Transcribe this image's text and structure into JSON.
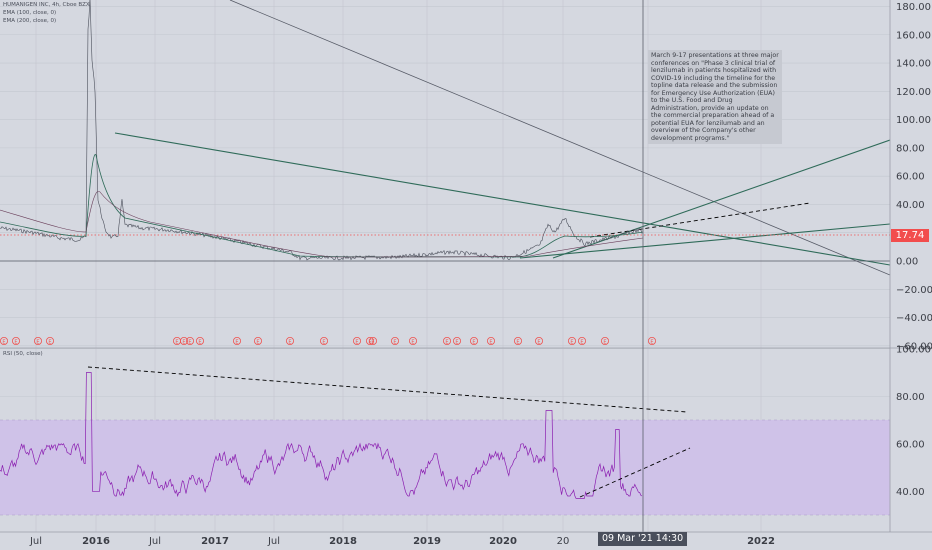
{
  "legend": {
    "symbol": "HUMANIGEN INC, 4h, Cboe BZX",
    "ema1": "EMA (100, close, 0)",
    "ema2": "EMA (200, close, 0)",
    "rsi": "RSI (50, close)"
  },
  "annotation": "March 9-17 presentations at three major conferences on \"Phase 3 clinical trial of lenzilumab in patients hospitalized with COVID-19 including the timeline for the topline data release and the submission for Emergency Use Authorization (EUA) to the U.S. Food and Drug Administration, provide an update on the commercial preparation ahead of a potential EUA for lenzilumab and an overview of the Company's other development programs.\"",
  "price_tag": "17.74",
  "cursor_label": "09 Mar '21  14:30",
  "colors": {
    "background": "#d5d8e0",
    "grid": "#c4c7cf",
    "trendline": "#2f6b59",
    "ema": "#2f6b59",
    "rsi_line": "#8b1fb0",
    "rsi_band": "#cfc2e8",
    "price_tag": "#f24d4d",
    "event_marker": "#ef5350"
  },
  "chart_data": [
    {
      "type": "line",
      "panel": "price",
      "y_ticks": [
        "180.00",
        "160.00",
        "140.00",
        "120.00",
        "100.00",
        "80.00",
        "60.00",
        "40.00",
        "20.00",
        "0.00",
        "−20.00",
        "−40.00",
        "−60.00"
      ],
      "ylim": [
        -60,
        185
      ],
      "x_ticks": [
        "Jul",
        "2016",
        "Jul",
        "2017",
        "Jul",
        "2018",
        "2019",
        "2020",
        "20",
        "Jul",
        "2022"
      ],
      "current_price": 17.74,
      "earnings_markers": "E",
      "grid": true
    },
    {
      "type": "line",
      "panel": "rsi",
      "y_ticks": [
        "100.00",
        "80.00",
        "60.00",
        "40.00"
      ],
      "ylim": [
        25,
        100
      ],
      "band": [
        30,
        70
      ],
      "grid": true
    }
  ]
}
